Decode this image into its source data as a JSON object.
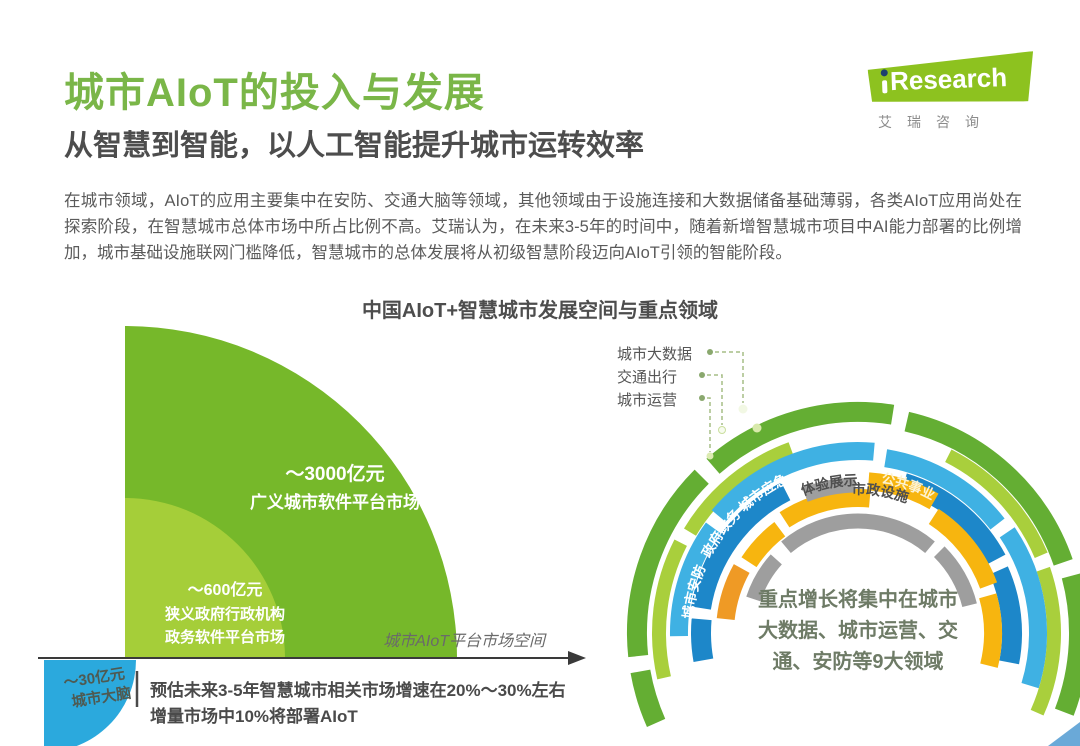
{
  "header": {
    "title": "城市AIoT的投入与发展",
    "subtitle": "从智慧到智能，以人工智能提升城市运转效率",
    "logo": {
      "brand": "iResearch",
      "brand_rest": "Research",
      "brand_cn": "艾瑞咨询"
    }
  },
  "intro": "在城市领域，AIoT的应用主要集中在安防、交通大脑等领域，其他领域由于设施连接和大数据储备基础薄弱，各类AIoT应用尚处在探索阶段，在智慧城市总体市场中所占比例不高。艾瑞认为，在未来3-5年的时间中，随着新增智慧城市项目中AI能力部署的比例增加，城市基础设施联网门槛降低，智慧城市的总体发展将从初级智慧阶段迈向AIoT引领的智能阶段。",
  "figure": {
    "title": "中国AIoT+智慧城市发展空间与重点领域",
    "left": {
      "big_value": "～3000亿元",
      "big_label": "广义城市软件平台市场",
      "mid_value": "～600亿元",
      "mid_label1": "狭义政府行政机构",
      "mid_label2": "政务软件平台市场",
      "small_value": "～30亿元",
      "small_label": "城市大脑",
      "axis_label": "城市AIoT平台市场空间",
      "note1": "预估未来3-5年智慧城市相关市场增速在20%～30%左右",
      "note2": "增量市场中10%将部署AIoT"
    },
    "right": {
      "callouts": [
        "城市大数据",
        "交通出行",
        "城市运营"
      ],
      "arc_labels": {
        "yingji": "城市应急",
        "zhengwu": "政府政务",
        "anfang": "城市安防",
        "tiyan": "体验展示",
        "shizheng": "市政设施",
        "gonggong": "公共事业"
      },
      "center1": "重点增长将集中在城市",
      "center2": "大数据、城市运营、交",
      "center3": "通、安防等9大领域"
    }
  },
  "colors": {
    "title_green": "#7ab648",
    "logo_green": "#8dc21f",
    "big_green": "#76b82a",
    "mid_green": "#a5ce39",
    "brain_blue": "#2ba9dd",
    "green": "#64ae33",
    "ylwgreen": "#a9cf3c",
    "lightblue": "#3fb1e3",
    "darkblue": "#1d87c9",
    "yellow": "#f7b50f",
    "orange": "#ef9a25",
    "gray": "#9e9e9e"
  },
  "chart_data": [
    {
      "type": "pie",
      "subtype": "nested-quarter-circles",
      "title": "城市AIoT平台市场空间",
      "unit": "亿元",
      "series": [
        {
          "name": "广义城市软件平台市场",
          "value": 3000,
          "label": "～3000亿元",
          "color": "#76b82a"
        },
        {
          "name": "狭义政府行政机构政务软件平台市场",
          "value": 600,
          "label": "～600亿元",
          "color": "#a5ce39"
        },
        {
          "name": "城市大脑",
          "value": 30,
          "label": "～30亿元",
          "color": "#2ba9dd"
        }
      ],
      "annotations": [
        "预估未来3-5年智慧城市相关市场增速在20%～30%左右",
        "增量市场中10%将部署AIoT"
      ]
    },
    {
      "type": "pie",
      "subtype": "concentric-arc-rings",
      "title": "重点领域",
      "callout_labels": [
        "城市大数据",
        "交通出行",
        "城市运营"
      ],
      "arc_segment_labels": [
        "城市应急",
        "政府政务",
        "城市安防",
        "体验展示",
        "市政设施",
        "公共事业"
      ],
      "center_note": "重点增长将集中在城市大数据、城市运营、交通、安防等9大领域",
      "legend_position": "top-left-callouts",
      "grid": false
    }
  ]
}
